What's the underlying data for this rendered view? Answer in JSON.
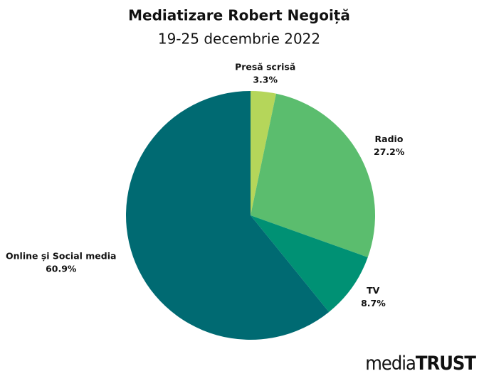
{
  "chart_data": {
    "type": "pie",
    "title": "Mediatizare Robert Negoiță",
    "subtitle": "19-25 decembrie 2022",
    "categories": [
      "Presă scrisă",
      "Radio",
      "TV",
      "Online și Social media"
    ],
    "values": [
      3.3,
      27.2,
      8.7,
      60.9
    ],
    "value_labels": [
      "3.3%",
      "27.2%",
      "8.7%",
      "60.9%"
    ],
    "colors": [
      "#b5d65a",
      "#5bbd6e",
      "#009174",
      "#006a72"
    ]
  },
  "logo": {
    "light": "media",
    "bold": "TRUST"
  }
}
